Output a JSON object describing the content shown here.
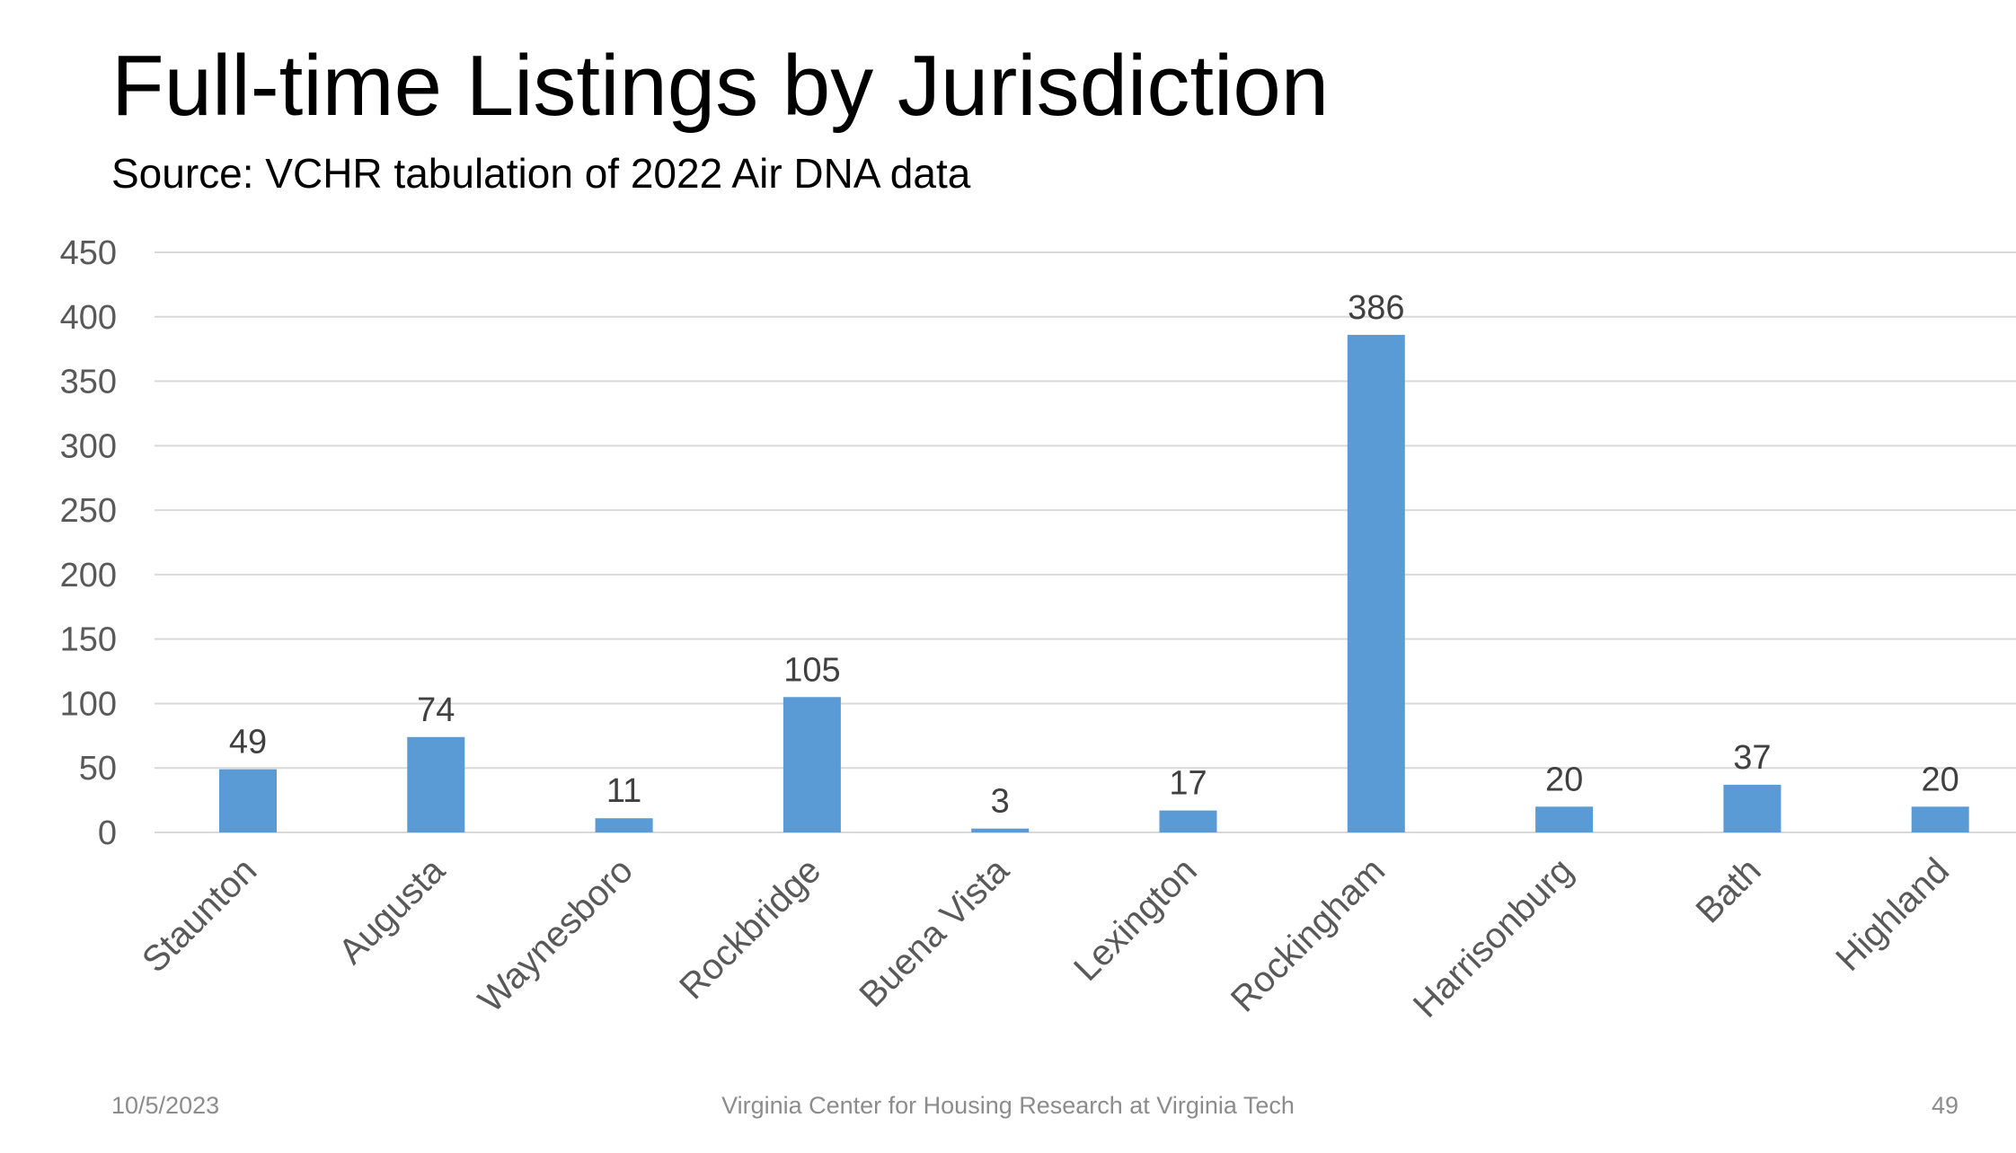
{
  "slide": {
    "title": "Full-time Listings by Jurisdiction",
    "subtitle": "Source: VCHR tabulation of 2022 Air DNA data",
    "footer_date": "10/5/2023",
    "footer_center": "Virginia Center for Housing Research at Virginia Tech",
    "page_number": "49"
  },
  "chart_data": {
    "type": "bar",
    "title": "",
    "xlabel": "",
    "ylabel": "",
    "categories": [
      "Staunton",
      "Augusta",
      "Waynesboro",
      "Rockbridge",
      "Buena Vista",
      "Lexington",
      "Rockingham",
      "Harrisonburg",
      "Bath",
      "Highland"
    ],
    "values": [
      49,
      74,
      11,
      105,
      3,
      17,
      386,
      20,
      37,
      20
    ],
    "ylim": [
      0,
      450
    ],
    "yticks": [
      0,
      50,
      100,
      150,
      200,
      250,
      300,
      350,
      400,
      450
    ],
    "grid": true,
    "legend": "none",
    "data_labels": true,
    "colors": {
      "bar": "#5b9bd5",
      "grid": "#d9d9d9",
      "axis_text": "#595959",
      "data_label_text": "#404040"
    }
  }
}
